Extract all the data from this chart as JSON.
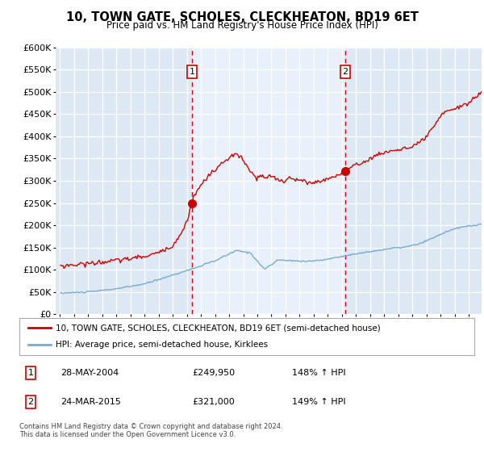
{
  "title": "10, TOWN GATE, SCHOLES, CLECKHEATON, BD19 6ET",
  "subtitle": "Price paid vs. HM Land Registry's House Price Index (HPI)",
  "legend_line1": "10, TOWN GATE, SCHOLES, CLECKHEATON, BD19 6ET (semi-detached house)",
  "legend_line2": "HPI: Average price, semi-detached house, Kirklees",
  "sale1_year": 2004.37,
  "sale1_price": 249950,
  "sale2_year": 2015.23,
  "sale2_price": 321000,
  "red_color": "#cc0000",
  "blue_color": "#7aaad0",
  "bg_color_left": "#dce9f5",
  "bg_color_mid": "#e8f1fb",
  "bg_color_right": "#dce9f5",
  "ylim": [
    0,
    600000
  ],
  "xlim_left": 1994.7,
  "xlim_right": 2024.9,
  "ann1_date": "28-MAY-2004",
  "ann1_price": "£249,950",
  "ann1_hpi": "148% ↑ HPI",
  "ann2_date": "24-MAR-2015",
  "ann2_price": "£321,000",
  "ann2_hpi": "149% ↑ HPI",
  "footer": "Contains HM Land Registry data © Crown copyright and database right 2024.\nThis data is licensed under the Open Government Licence v3.0."
}
